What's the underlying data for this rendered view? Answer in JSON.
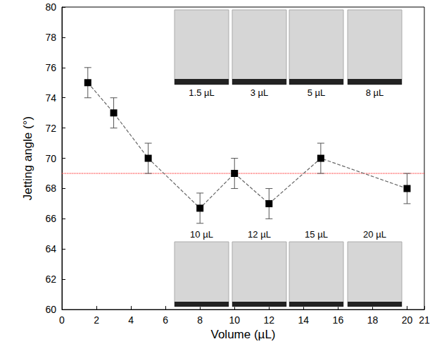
{
  "chart_data": {
    "type": "line",
    "x_label": "Volume (µL)",
    "y_label": "Jetting angle (°)",
    "x": [
      1.5,
      3,
      5,
      8,
      10,
      12,
      15,
      20
    ],
    "values": [
      75,
      73,
      70,
      66.7,
      69,
      67,
      70,
      68
    ],
    "errors": [
      1,
      1,
      1,
      1,
      1,
      1,
      1,
      1
    ],
    "color": "#000000",
    "marker": "square",
    "line_style": "dashed",
    "xlim": [
      0,
      21
    ],
    "xticks": [
      0,
      2,
      4,
      6,
      8,
      10,
      12,
      14,
      16,
      18,
      20
    ],
    "ylim": [
      60,
      80
    ],
    "yticks": [
      60,
      62,
      64,
      66,
      68,
      70,
      72,
      74,
      76,
      78,
      80
    ],
    "grid": false,
    "reference_line": {
      "value": 69,
      "color": "#ff0000",
      "line_style": "dotted"
    },
    "inset_labels_top": [
      "1.5 µL",
      "3 µL",
      "5 µL",
      "8 µL"
    ],
    "inset_labels_bottom": [
      "10 µL",
      "12 µL",
      "15 µL",
      "20 µL"
    ]
  }
}
